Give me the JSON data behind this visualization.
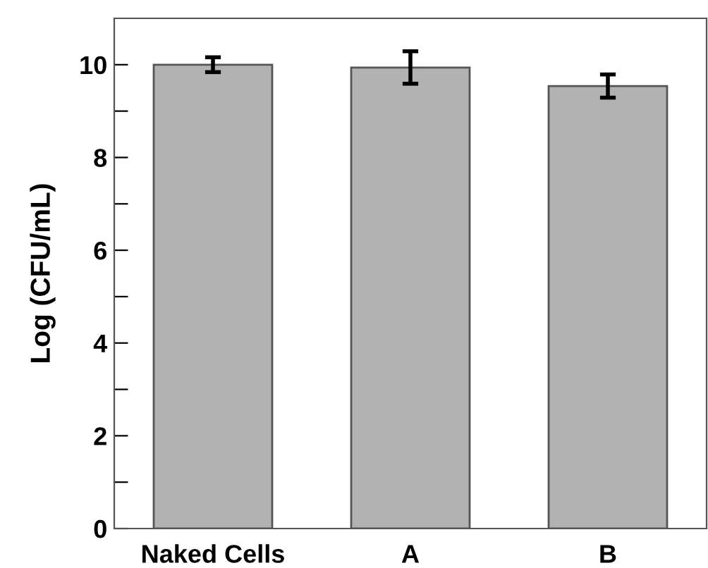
{
  "chart_data": {
    "type": "bar",
    "ylabel": "Log (CFU/mL)",
    "categories": [
      "Naked Cells",
      "A",
      "B"
    ],
    "values": [
      10.0,
      9.94,
      9.54
    ],
    "errors": [
      0.16,
      0.35,
      0.25
    ],
    "color": "#b2b2b2",
    "ylim": [
      0,
      11
    ],
    "yticks": [
      0,
      {
        "value": 1,
        "label": null
      },
      2,
      {
        "value": 3,
        "label": null
      },
      4,
      {
        "value": 5,
        "label": null
      },
      6,
      {
        "value": 7,
        "label": null
      },
      8,
      {
        "value": 9,
        "label": null
      },
      10
    ],
    "grid": false,
    "legend": false
  }
}
